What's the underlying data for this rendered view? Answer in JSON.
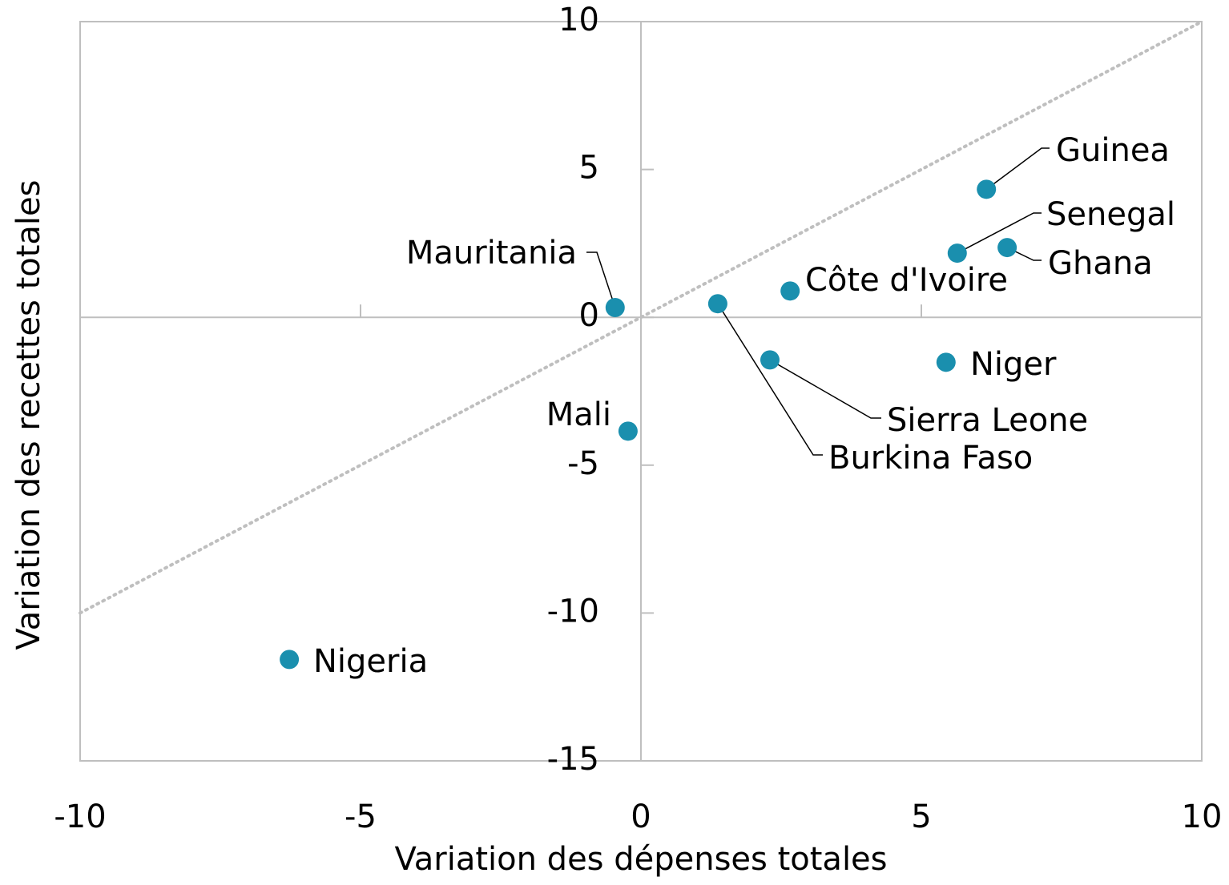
{
  "chart_data": {
    "type": "scatter",
    "x_label": "Variation des dépenses totales",
    "y_label": "Variation des recettes totales",
    "color": "#1a8fae",
    "identity_line": true,
    "points": [
      "Guinea",
      "Senegal",
      "Ghana",
      "Côte d'Ivoire",
      "Burkina Faso",
      "Mauritania",
      "Sierra Leone",
      "Niger",
      "Mali",
      "Nigeria"
    ],
    "x": [
      6.16,
      5.64,
      6.53,
      2.66,
      1.37,
      -0.46,
      2.3,
      5.44,
      -0.23,
      -6.27
    ],
    "values": [
      4.33,
      2.17,
      2.36,
      0.89,
      0.46,
      0.33,
      -1.44,
      -1.52,
      -3.85,
      -11.57
    ],
    "xlim": [
      -10,
      10
    ],
    "xticks": [
      -10,
      -5,
      0,
      5,
      10
    ],
    "ylim": [
      -15,
      10
    ],
    "yticks": [
      -15,
      -10,
      -5,
      0,
      5,
      10
    ]
  }
}
